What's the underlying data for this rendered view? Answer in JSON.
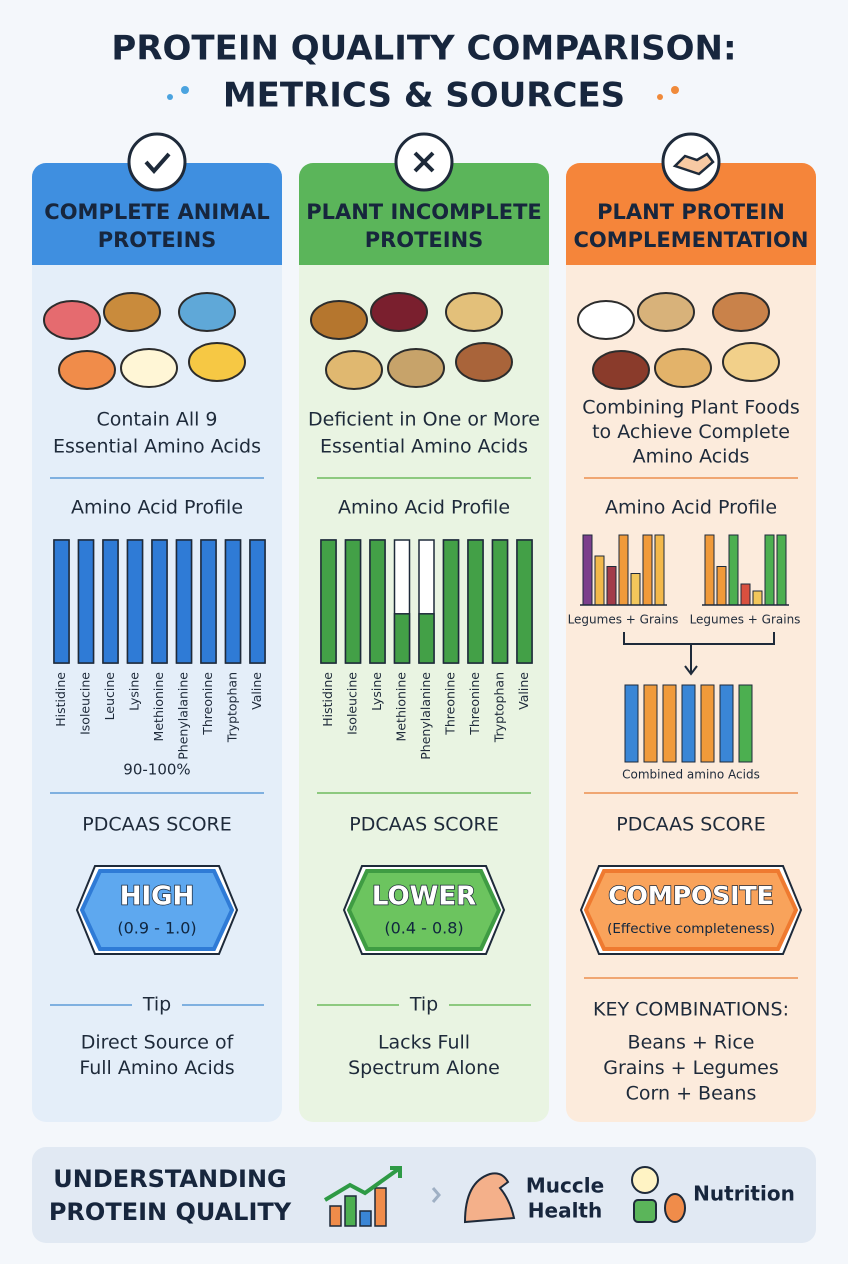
{
  "title": [
    "PROTEIN QUALITY COMPARISON:",
    "METRICS & SOURCES"
  ],
  "columns": [
    {
      "title": [
        "COMPLETE ANIMAL",
        "PROTEINS"
      ],
      "description": [
        "Contain All 9",
        "Essential Amino Acids"
      ],
      "profile_title": "Amino Acid Profile",
      "profile": {
        "type": "bar",
        "categories": [
          "Histidine",
          "Isoleucine",
          "Leucine",
          "Lysine",
          "Methionine",
          "Phenylalanine",
          "Threonine",
          "Tryptophan",
          "Valine"
        ],
        "values": [
          100,
          100,
          100,
          100,
          100,
          100,
          100,
          100,
          100
        ],
        "color": "#2f7bd6",
        "note": "90-100%"
      },
      "score_label": "PDCAAS SCORE",
      "badge": {
        "main": "HIGH",
        "sub": "(0.9 - 1.0)"
      },
      "tip": {
        "title": "Tip",
        "text": [
          "Direct Source of",
          "Full Amino Acids"
        ]
      }
    },
    {
      "title": [
        "PLANT INCOMPLETE",
        "PROTEINS"
      ],
      "description": [
        "Deficient in One or More",
        "Essential Amino Acids"
      ],
      "profile_title": "Amino Acid Profile",
      "profile": {
        "type": "bar",
        "categories": [
          "Histidine",
          "Isoleucine",
          "Lysine",
          "Methionine",
          "Phenylalanine",
          "Threonine",
          "Threonine",
          "Tryptophan",
          "Valine"
        ],
        "values": [
          100,
          100,
          100,
          40,
          40,
          100,
          100,
          100,
          100
        ],
        "color": "#43a047"
      },
      "score_label": "PDCAAS SCORE",
      "badge": {
        "main": "LOWER",
        "sub": "(0.4 - 0.8)"
      },
      "tip": {
        "title": "Tip",
        "text": [
          "Lacks Full",
          "Spectrum Alone"
        ]
      }
    },
    {
      "title": [
        "PLANT PROTEIN",
        "COMPLEMENTATION"
      ],
      "description": [
        "Combining Plant Foods",
        "to Achieve Complete",
        "Amino Acids"
      ],
      "profile_title": "Amino Acid Profile",
      "profile": {
        "type": "grouped",
        "groups": [
          {
            "label": "Legumes + Grains",
            "values": [
              100,
              70,
              55,
              100,
              45,
              100,
              100
            ],
            "colors": [
              "#7b3f8c",
              "#f2b84b",
              "#a23b4a",
              "#f09a3a",
              "#f2c75b",
              "#f09a3a",
              "#f2b84b"
            ]
          },
          {
            "label": "Legumes + Grains",
            "values": [
              100,
              55,
              100,
              30,
              20,
              100,
              100
            ],
            "colors": [
              "#f09a3a",
              "#f09a3a",
              "#4caf50",
              "#d9503f",
              "#f2c75b",
              "#4caf50",
              "#4caf50"
            ]
          }
        ],
        "combined": {
          "label": "Combined amino Acids",
          "values": [
            100,
            100,
            100,
            100,
            100,
            100,
            100
          ],
          "colors": [
            "#3a86d6",
            "#f09a3a",
            "#f09a3a",
            "#3a86d6",
            "#f09a3a",
            "#3a86d6",
            "#4caf50"
          ]
        }
      },
      "score_label": "PDCAAS SCORE",
      "badge": {
        "main": "COMPOSITE",
        "sub": "(Effective completeness)"
      },
      "combinations": {
        "title": "KEY COMBINATIONS:",
        "items": [
          "Beans + Rice",
          "Grains + Legumes",
          "Corn + Beans"
        ]
      }
    }
  ],
  "footer": {
    "title": [
      "UNDERSTANDING",
      "PROTEIN QUALITY"
    ],
    "items": [
      [
        "Muccle",
        "Health"
      ],
      [
        "Nutrition"
      ]
    ]
  }
}
